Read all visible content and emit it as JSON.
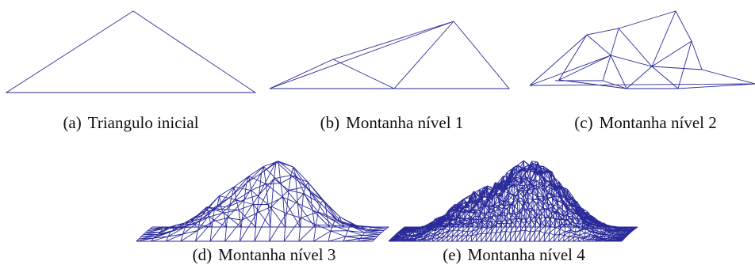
{
  "figure": {
    "subfigures": [
      {
        "label": "(a)",
        "caption": "Triangulo inicial"
      },
      {
        "label": "(b)",
        "caption": "Montanha nível 1"
      },
      {
        "label": "(c)",
        "caption": "Montanha nível 2"
      },
      {
        "label": "(d)",
        "caption": "Montanha nível 3"
      },
      {
        "label": "(e)",
        "caption": "Montanha nível 4"
      }
    ]
  }
}
